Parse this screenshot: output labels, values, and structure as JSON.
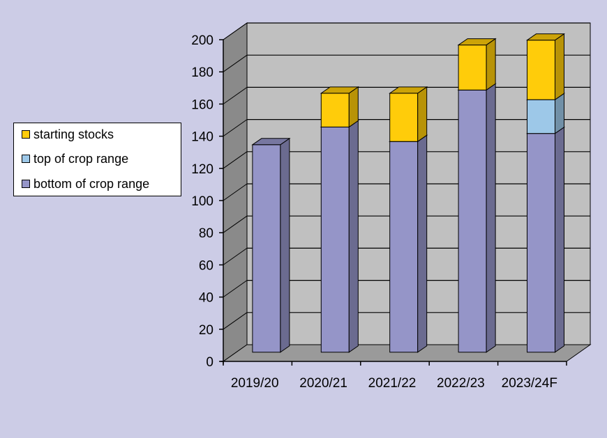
{
  "chart_data": {
    "type": "bar",
    "stacked": true,
    "three_d": true,
    "categories": [
      "2019/20",
      "2020/21",
      "2021/22",
      "2022/23",
      "2023/24F"
    ],
    "series": [
      {
        "name": "bottom of crop range",
        "color": "#9595c8",
        "values": [
          129,
          140,
          131,
          163,
          136
        ]
      },
      {
        "name": "top of crop range",
        "color": "#9dc8e8",
        "values": [
          0,
          0,
          0,
          0,
          21
        ]
      },
      {
        "name": "starting stocks",
        "color": "#ffcc0a",
        "values": [
          0,
          21,
          30,
          28,
          37
        ]
      }
    ],
    "ylim": [
      0,
      200
    ],
    "yticks": [
      0,
      20,
      40,
      60,
      80,
      100,
      120,
      140,
      160,
      180,
      200
    ],
    "grid": true,
    "legend_position": "left",
    "legend_order": [
      "starting stocks",
      "top of crop range",
      "bottom of crop range"
    ],
    "colors": {
      "background": "#cccce6",
      "back_wall": "#c0c0c0",
      "side_wall": "#8a8a8a",
      "floor": "#9a9a9a"
    }
  }
}
